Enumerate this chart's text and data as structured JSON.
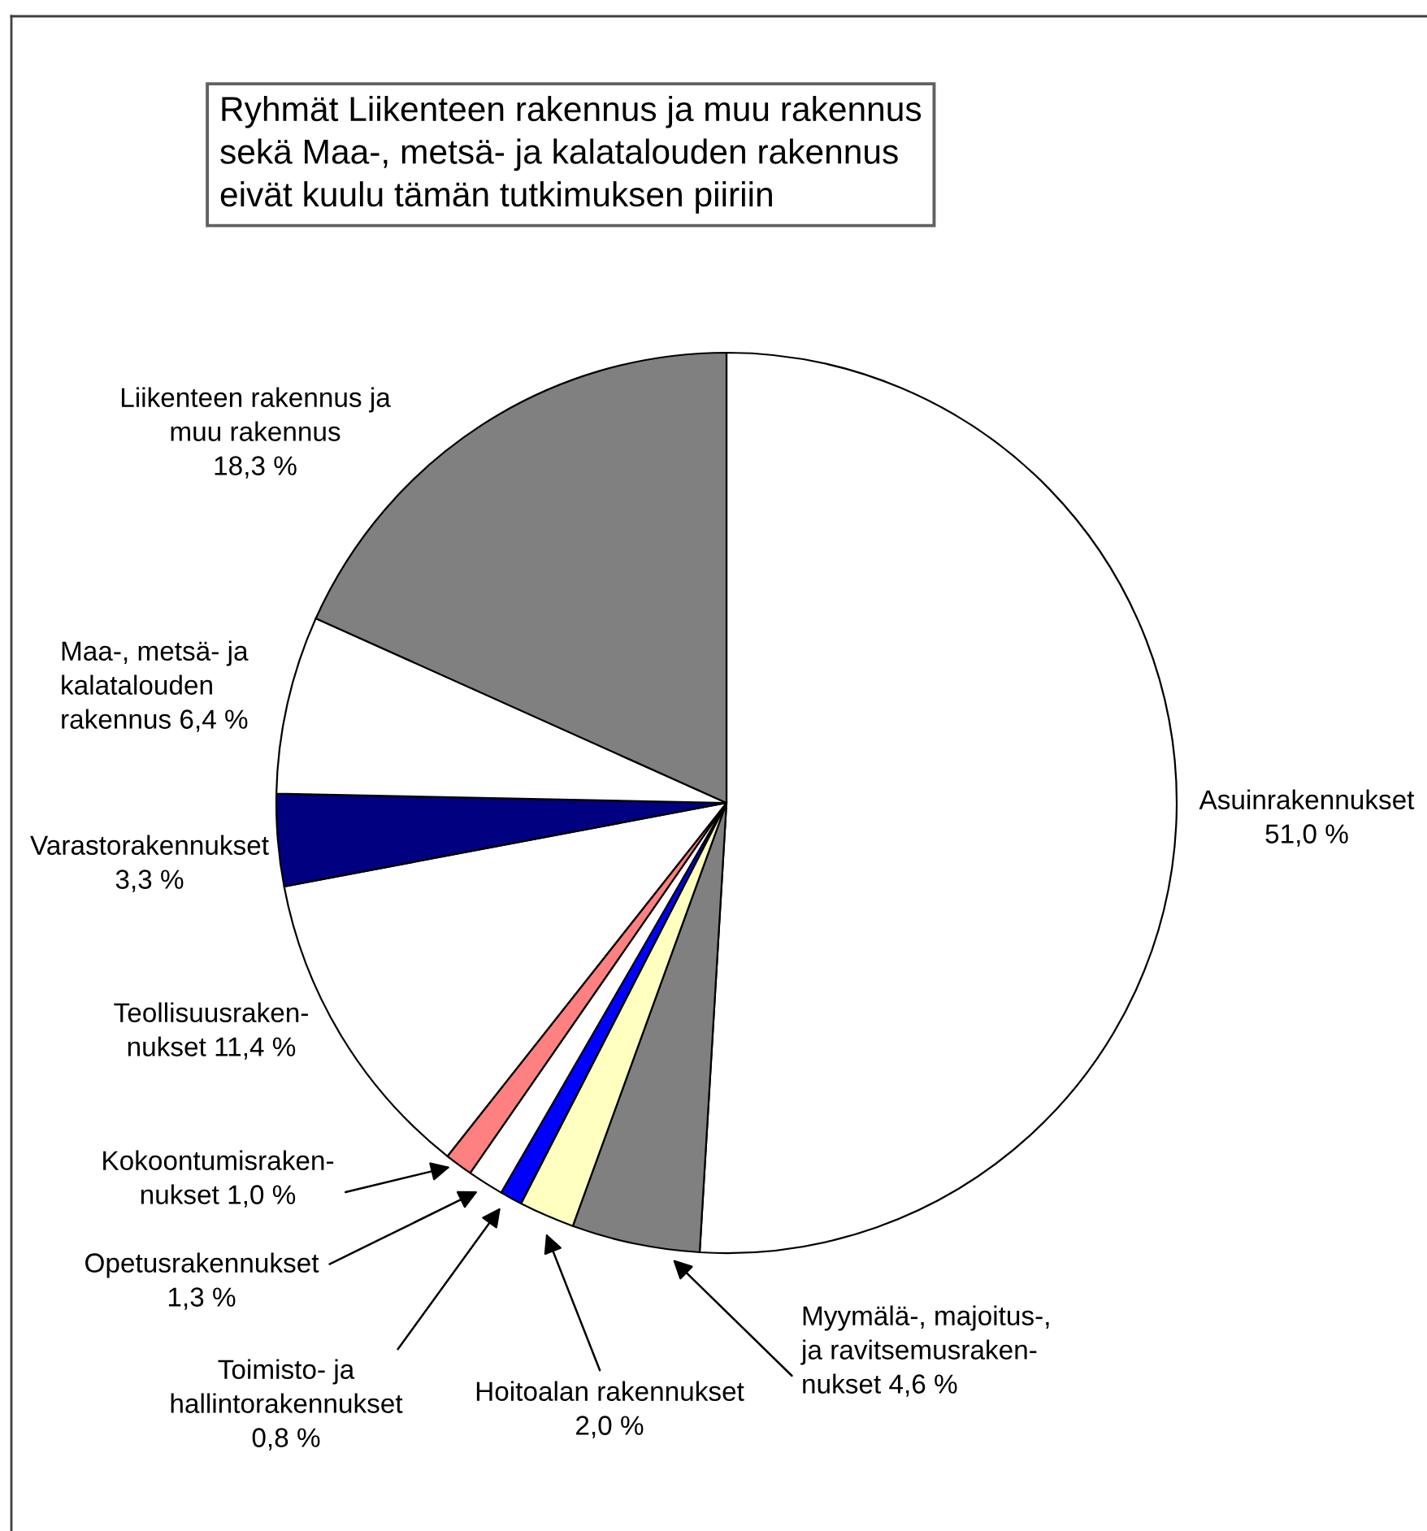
{
  "chart_data": {
    "type": "pie",
    "categories": [
      "Asuinrakennukset",
      "Myymälä-, majoitus-,\nja ravitsemusraken-\nnukset",
      "Hoitoalan rakennukset",
      "Toimisto- ja\nhallintorakennukset",
      "Opetusrakennukset",
      "Kokoontumisraken-\nnukset",
      "Teollisuusraken-\nnukset",
      "Varastorakennukset",
      "Maa-, metsä- ja\nkalatalouden\nrakennus",
      "Liikenteen rakennus ja\nmuu rakennus"
    ],
    "values": [
      51.0,
      4.6,
      2.0,
      0.8,
      1.3,
      1.0,
      11.4,
      3.3,
      6.4,
      18.3
    ],
    "colors": [
      "#ffffff",
      "#808080",
      "#ffffc0",
      "#0000ff",
      "#ffffff",
      "#ff8080",
      "#ffffff",
      "#000080",
      "#ffffff",
      "#808080"
    ],
    "value_labels": [
      "51,0 %",
      "4,6 %",
      "2,0 %",
      "0,8 %",
      "1,3 %",
      "1,0 %",
      "11,4 %",
      "3,3 %",
      "6,4 %",
      "18,3 %"
    ],
    "annotations": [
      "Ryhmät Liikenteen rakennus ja muu rakennus\nsekä Maa-, metsä- ja kalatalouden rakennus\neivät kuulu tämän tutkimuksen piiriin"
    ]
  }
}
